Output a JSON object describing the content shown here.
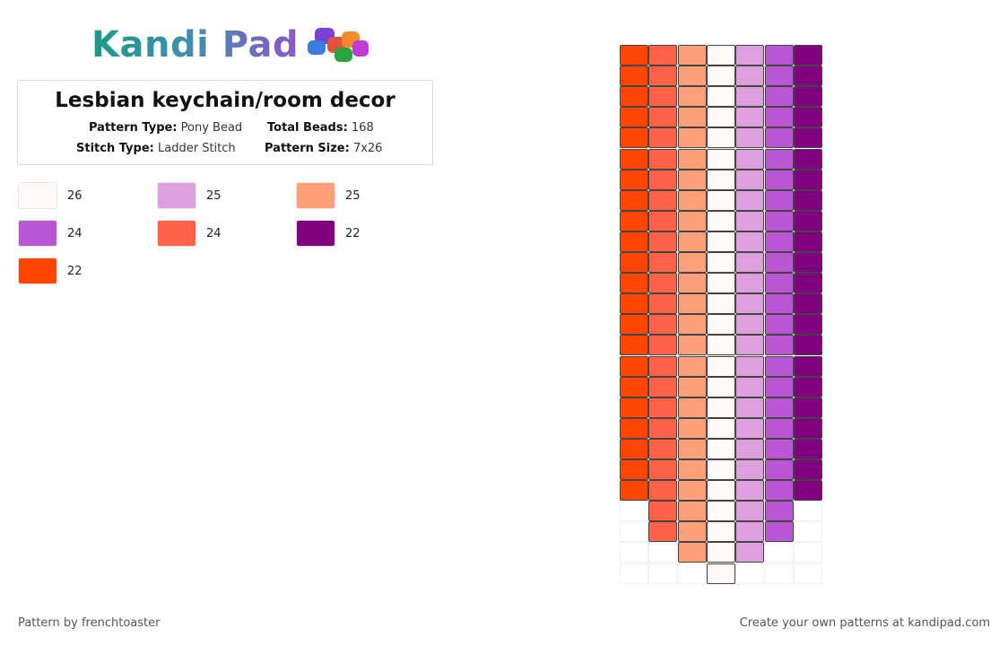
{
  "logo": {
    "text": "Kandi Pad",
    "beads": [
      "#7a3fd6",
      "#3a7be0",
      "#e0523a",
      "#f08a2a",
      "#2aa33a",
      "#c03ad6"
    ]
  },
  "info": {
    "title": "Lesbian keychain/room decor",
    "pattern_type_label": "Pattern Type:",
    "pattern_type": "Pony Bead",
    "total_beads_label": "Total Beads:",
    "total_beads": "168",
    "stitch_type_label": "Stitch Type:",
    "stitch_type": "Ladder Stitch",
    "pattern_size_label": "Pattern Size:",
    "pattern_size": "7x26"
  },
  "legend": [
    {
      "color": "#FFF9F8",
      "count": "26"
    },
    {
      "color": "#DDA0DD",
      "count": "25"
    },
    {
      "color": "#FFA07A",
      "count": "25"
    },
    {
      "color": "#BA55D3",
      "count": "24"
    },
    {
      "color": "#FF6347",
      "count": "24"
    },
    {
      "color": "#800080",
      "count": "22"
    },
    {
      "color": "#FF4500",
      "count": "22"
    }
  ],
  "pattern": {
    "columns": [
      {
        "color": "#FF4500",
        "beads": 22
      },
      {
        "color": "#FF6347",
        "beads": 24
      },
      {
        "color": "#FFA07A",
        "beads": 25
      },
      {
        "color": "#FFF9F8",
        "beads": 26
      },
      {
        "color": "#DDA0DD",
        "beads": 25
      },
      {
        "color": "#BA55D3",
        "beads": 24
      },
      {
        "color": "#800080",
        "beads": 22
      }
    ],
    "rows": 26
  },
  "footer": {
    "author": "Pattern by frenchtoaster",
    "credit": "Create your own patterns at kandipad.com"
  }
}
